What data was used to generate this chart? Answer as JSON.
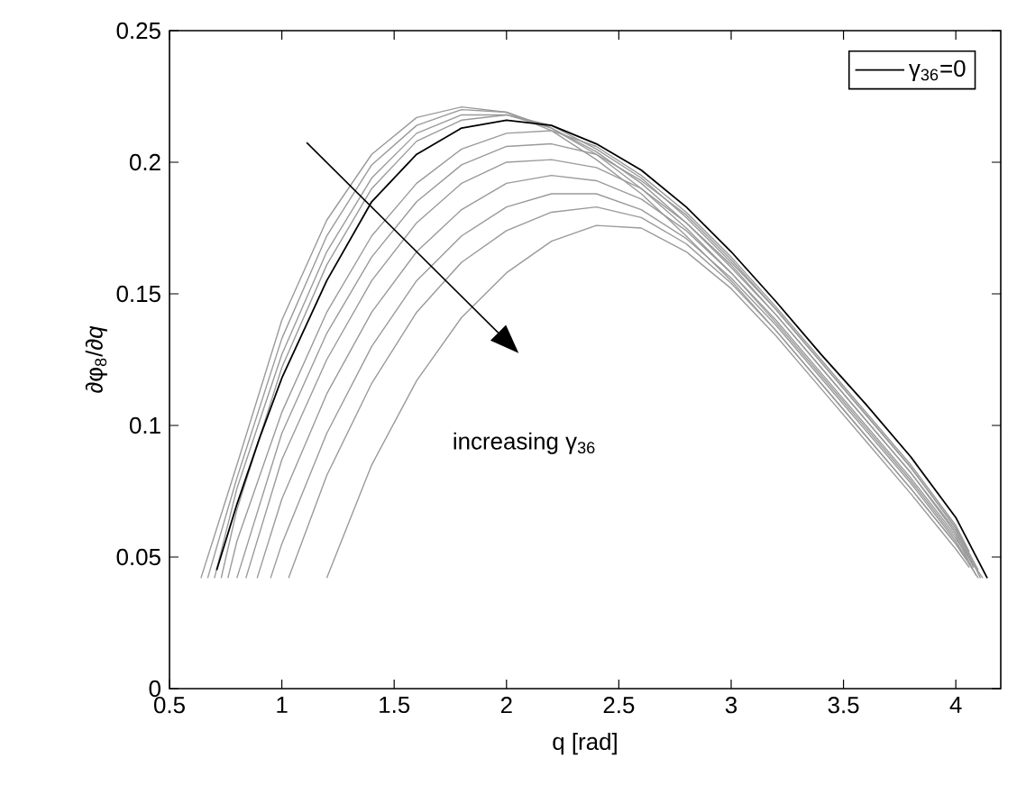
{
  "chart_data": {
    "type": "line",
    "xlabel": "q  [rad]",
    "ylabel": "∂φ$_{8}$/∂*q*",
    "xlim": [
      0.5,
      4.2
    ],
    "ylim": [
      0,
      0.25
    ],
    "xticks": [
      0.5,
      1,
      1.5,
      2,
      2.5,
      3,
      3.5,
      4
    ],
    "yticks": [
      0,
      0.05,
      0.1,
      0.15,
      0.2,
      0.25
    ],
    "grid": false,
    "legend": "top right",
    "marker": "none",
    "line_style": "solid",
    "annotations": [
      "increasing γ$_{36}$"
    ],
    "series": [
      {
        "color": "#9a9a9a",
        "x": [
          0.64,
          0.8,
          1.0,
          1.2,
          1.4,
          1.6,
          1.8,
          2.0,
          2.2,
          2.4,
          2.6,
          2.8,
          3.0,
          3.2,
          3.4,
          3.6,
          3.8,
          4.0,
          4.04
        ],
        "values": [
          0.042,
          0.085,
          0.14,
          0.178,
          0.203,
          0.217,
          0.221,
          0.219,
          0.212,
          0.201,
          0.188,
          0.172,
          0.155,
          0.136,
          0.116,
          0.096,
          0.076,
          0.055,
          0.05
        ]
      },
      {
        "color": "#9a9a9a",
        "x": [
          0.67,
          0.8,
          1.0,
          1.2,
          1.4,
          1.6,
          1.8,
          2.0,
          2.2,
          2.4,
          2.6,
          2.8,
          3.0,
          3.2,
          3.4,
          3.6,
          3.8,
          4.0,
          4.12
        ],
        "values": [
          0.042,
          0.08,
          0.133,
          0.172,
          0.199,
          0.214,
          0.22,
          0.219,
          0.213,
          0.203,
          0.19,
          0.175,
          0.158,
          0.139,
          0.119,
          0.099,
          0.079,
          0.057,
          0.042
        ]
      },
      {
        "color": "#9a9a9a",
        "x": [
          0.7,
          0.8,
          1.0,
          1.2,
          1.4,
          1.6,
          1.8,
          2.0,
          2.2,
          2.4,
          2.6,
          2.8,
          3.0,
          3.2,
          3.4,
          3.6,
          3.8,
          4.0,
          4.08
        ],
        "values": [
          0.042,
          0.076,
          0.127,
          0.166,
          0.194,
          0.211,
          0.218,
          0.218,
          0.213,
          0.204,
          0.192,
          0.177,
          0.16,
          0.142,
          0.122,
          0.102,
          0.082,
          0.059,
          0.046
        ]
      },
      {
        "color": "#9a9a9a",
        "x": [
          0.73,
          0.8,
          1.0,
          1.2,
          1.4,
          1.6,
          1.8,
          2.0,
          2.2,
          2.4,
          2.6,
          2.8,
          3.0,
          3.2,
          3.4,
          3.6,
          3.8,
          4.0,
          4.1
        ],
        "values": [
          0.042,
          0.068,
          0.122,
          0.161,
          0.19,
          0.208,
          0.216,
          0.218,
          0.214,
          0.205,
          0.194,
          0.179,
          0.162,
          0.144,
          0.124,
          0.104,
          0.084,
          0.061,
          0.045
        ]
      },
      {
        "color": "#9a9a9a",
        "x": [
          0.76,
          0.8,
          1.0,
          1.2,
          1.4,
          1.6,
          1.8,
          2.0,
          2.2,
          2.4,
          2.6,
          2.8,
          3.0,
          3.2,
          3.4,
          3.6,
          3.8,
          4.0,
          4.06
        ],
        "values": [
          0.042,
          0.056,
          0.105,
          0.143,
          0.172,
          0.192,
          0.205,
          0.211,
          0.212,
          0.206,
          0.195,
          0.181,
          0.164,
          0.145,
          0.125,
          0.105,
          0.085,
          0.062,
          0.052
        ]
      },
      {
        "color": "#9a9a9a",
        "x": [
          0.8,
          1.0,
          1.2,
          1.4,
          1.6,
          1.8,
          2.0,
          2.2,
          2.4,
          2.6,
          2.8,
          3.0,
          3.2,
          3.4,
          3.6,
          3.8,
          4.0,
          4.11
        ],
        "values": [
          0.042,
          0.097,
          0.135,
          0.164,
          0.185,
          0.199,
          0.206,
          0.207,
          0.203,
          0.193,
          0.18,
          0.163,
          0.144,
          0.124,
          0.104,
          0.084,
          0.061,
          0.042
        ]
      },
      {
        "color": "#9a9a9a",
        "x": [
          0.84,
          1.0,
          1.2,
          1.4,
          1.6,
          1.8,
          2.0,
          2.2,
          2.4,
          2.6,
          2.8,
          3.0,
          3.2,
          3.4,
          3.6,
          3.8,
          4.0,
          4.07
        ],
        "values": [
          0.042,
          0.087,
          0.125,
          0.155,
          0.177,
          0.192,
          0.2,
          0.201,
          0.198,
          0.19,
          0.177,
          0.161,
          0.142,
          0.122,
          0.102,
          0.082,
          0.06,
          0.048
        ]
      },
      {
        "color": "#9a9a9a",
        "x": [
          0.89,
          1.0,
          1.2,
          1.4,
          1.6,
          1.8,
          2.0,
          2.2,
          2.4,
          2.6,
          2.8,
          3.0,
          3.2,
          3.4,
          3.6,
          3.8,
          4.0,
          4.09
        ],
        "values": [
          0.042,
          0.072,
          0.112,
          0.143,
          0.166,
          0.182,
          0.192,
          0.195,
          0.193,
          0.186,
          0.174,
          0.158,
          0.14,
          0.12,
          0.1,
          0.08,
          0.058,
          0.043
        ]
      },
      {
        "color": "#9a9a9a",
        "x": [
          0.95,
          1.0,
          1.2,
          1.4,
          1.6,
          1.8,
          2.0,
          2.2,
          2.4,
          2.6,
          2.8,
          3.0,
          3.2,
          3.4,
          3.6,
          3.8,
          4.0,
          4.05
        ],
        "values": [
          0.042,
          0.055,
          0.097,
          0.13,
          0.155,
          0.172,
          0.183,
          0.188,
          0.188,
          0.182,
          0.171,
          0.156,
          0.138,
          0.118,
          0.098,
          0.078,
          0.056,
          0.049
        ]
      },
      {
        "color": "#9a9a9a",
        "x": [
          1.03,
          1.2,
          1.4,
          1.6,
          1.8,
          2.0,
          2.2,
          2.4,
          2.6,
          2.8,
          3.0,
          3.2,
          3.4,
          3.6,
          3.8,
          4.0,
          4.1
        ],
        "values": [
          0.042,
          0.081,
          0.116,
          0.143,
          0.162,
          0.174,
          0.181,
          0.183,
          0.179,
          0.169,
          0.154,
          0.136,
          0.116,
          0.096,
          0.076,
          0.055,
          0.042
        ]
      },
      {
        "color": "#9a9a9a",
        "x": [
          1.2,
          1.4,
          1.6,
          1.8,
          2.0,
          2.2,
          2.4,
          2.6,
          2.8,
          3.0,
          3.2,
          3.4,
          3.6,
          3.8,
          4.0,
          4.06
        ],
        "values": [
          0.042,
          0.085,
          0.117,
          0.141,
          0.158,
          0.17,
          0.176,
          0.175,
          0.166,
          0.152,
          0.134,
          0.114,
          0.094,
          0.074,
          0.053,
          0.046
        ]
      },
      {
        "name": "γ$_{36}$=0",
        "color": "#000000",
        "x": [
          0.71,
          0.8,
          0.9,
          1.0,
          1.2,
          1.4,
          1.6,
          1.8,
          2.0,
          2.2,
          2.4,
          2.6,
          2.8,
          3.0,
          3.2,
          3.4,
          3.6,
          3.8,
          4.0,
          4.14
        ],
        "values": [
          0.045,
          0.07,
          0.095,
          0.118,
          0.155,
          0.185,
          0.203,
          0.213,
          0.216,
          0.214,
          0.207,
          0.197,
          0.183,
          0.166,
          0.147,
          0.127,
          0.108,
          0.088,
          0.065,
          0.042
        ]
      }
    ]
  }
}
